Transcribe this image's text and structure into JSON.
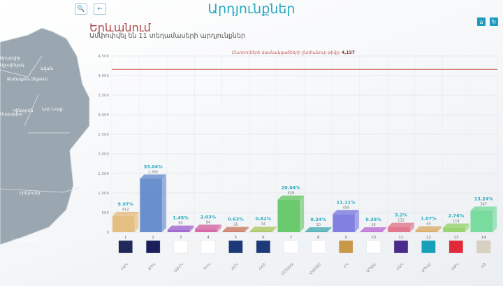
{
  "header": {
    "title": "Արդյունքներ",
    "search_icon": "search-icon",
    "back_icon": "arrow-left-icon",
    "home_icon": "home-icon",
    "refresh_icon": "refresh-icon"
  },
  "region": {
    "name": "Երևանում",
    "summary": "Ամփոփվել են 11 տեղամասերի արդյունքներ"
  },
  "map": {
    "districts": [
      "Ավան",
      "Քանաքեռ-Զեյթուն",
      "Աջափնյակ",
      "Կենտրոն",
      "Նոր Նորք",
      "Մալաթիա",
      "Էրեբունի",
      "Նուբարաշեն",
      "Արաբկիր"
    ]
  },
  "chart_data": {
    "type": "bar",
    "title": "",
    "threshold_label": "Ընտրողների մասնակցածների ընդհանուր թիվը:",
    "threshold_value": 4157,
    "threshold_value_label": "4,157",
    "ylim": [
      0,
      4500
    ],
    "yticks": [
      "0",
      "500",
      "1,000",
      "1,500",
      "2,000",
      "2,500",
      "3,000",
      "3,500",
      "4,000",
      "4,500"
    ],
    "categories": [
      "1",
      "2",
      "3",
      "4",
      "5",
      "6",
      "7",
      "8",
      "9",
      "10",
      "11",
      "12",
      "13",
      "14"
    ],
    "names": [
      "ՀԺԿ",
      "ՔՊԿ",
      "ԱԺՀԿ",
      "ԲՀԿ",
      "ՀՄԿ",
      "ՀՀՇ",
      "ՄՄԱԽԱ",
      "ԱԱՄԱՄ",
      "ՀԿ",
      "ԱՊԱՄ",
      "ՀԱԿ",
      "ԺՊԿՄ",
      "ՍԺԿ",
      "ՀՅ"
    ],
    "values": [
      412,
      1365,
      60,
      84,
      26,
      34,
      828,
      10,
      459,
      16,
      132,
      44,
      114,
      547
    ],
    "value_labels": [
      "412",
      "1,365",
      "60",
      "84",
      "26",
      "34",
      "828",
      "10",
      "459",
      "16",
      "132",
      "44",
      "114",
      "547"
    ],
    "percents": [
      "9.97%",
      "33.04%",
      "1.45%",
      "2.03%",
      "0.63%",
      "0.82%",
      "20.04%",
      "0.24%",
      "11.11%",
      "0.39%",
      "3.2%",
      "1.07%",
      "2.76%",
      "13.24%"
    ],
    "colors": [
      "#e3b875",
      "#5b84c9",
      "#9b5ccc",
      "#d45c9c",
      "#c8705a",
      "#a8c458",
      "#5cc45e",
      "#3ca8ac",
      "#7474e0",
      "#b864d2",
      "#e06c84",
      "#d8a860",
      "#90d064",
      "#6cd894"
    ],
    "logo_colors": [
      "#1f2a5a",
      "#1a1f5c",
      "#ffffff",
      "#ffffff",
      "#1d3a78",
      "#1d3a78",
      "#ffffff",
      "#ffffff",
      "#c89a48",
      "#ffffff",
      "#4a2a8c",
      "#18a0b8",
      "#e02a3a",
      "#d8d0c0"
    ],
    "threshold_color": "#c85050",
    "grid": true
  }
}
